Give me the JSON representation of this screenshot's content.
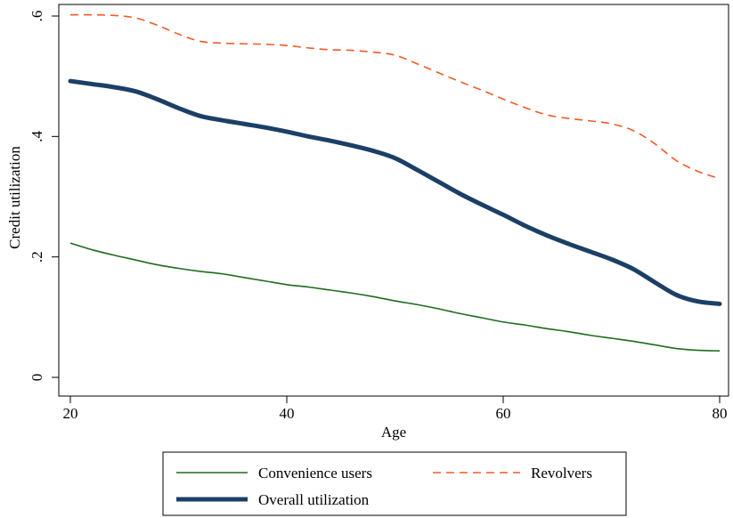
{
  "chart_data": {
    "type": "line",
    "xlabel": "Age",
    "ylabel": "Credit utilization",
    "xlim": [
      20,
      80
    ],
    "ylim": [
      0,
      0.6
    ],
    "x_ticks": [
      20,
      40,
      60,
      80
    ],
    "x_tick_labels": [
      "20",
      "40",
      "60",
      "80"
    ],
    "y_ticks": [
      0,
      0.2,
      0.4,
      0.6
    ],
    "y_tick_labels": [
      "0",
      ".2",
      ".4",
      ".6"
    ],
    "grid": false,
    "legend_position": "bottom",
    "series": [
      {
        "name": "Convenience users",
        "color": "#1f6b1f",
        "style": "solid-thin",
        "x": [
          20,
          22,
          24,
          26,
          28,
          30,
          32,
          34,
          36,
          38,
          40,
          42,
          44,
          46,
          48,
          50,
          52,
          54,
          56,
          58,
          60,
          62,
          64,
          66,
          68,
          70,
          72,
          74,
          76,
          78,
          80
        ],
        "y": [
          0.223,
          0.212,
          0.203,
          0.195,
          0.187,
          0.181,
          0.176,
          0.172,
          0.166,
          0.16,
          0.154,
          0.15,
          0.145,
          0.14,
          0.134,
          0.127,
          0.121,
          0.114,
          0.106,
          0.099,
          0.092,
          0.087,
          0.081,
          0.076,
          0.07,
          0.065,
          0.06,
          0.054,
          0.048,
          0.045,
          0.044
        ]
      },
      {
        "name": "Revolvers",
        "color": "#f05a28",
        "style": "dashed",
        "x": [
          20,
          22,
          24,
          26,
          28,
          30,
          32,
          34,
          36,
          38,
          40,
          42,
          44,
          46,
          48,
          50,
          52,
          54,
          56,
          58,
          60,
          62,
          64,
          66,
          68,
          70,
          72,
          74,
          76,
          78,
          80
        ],
        "y": [
          0.602,
          0.602,
          0.601,
          0.597,
          0.585,
          0.57,
          0.558,
          0.555,
          0.554,
          0.553,
          0.551,
          0.547,
          0.544,
          0.543,
          0.54,
          0.535,
          0.521,
          0.506,
          0.491,
          0.477,
          0.462,
          0.448,
          0.436,
          0.43,
          0.426,
          0.421,
          0.41,
          0.388,
          0.36,
          0.342,
          0.33
        ]
      },
      {
        "name": "Overall utilization",
        "color": "#1c3f66",
        "style": "solid-thick",
        "x": [
          20,
          22,
          24,
          26,
          28,
          30,
          32,
          34,
          36,
          38,
          40,
          42,
          44,
          46,
          48,
          50,
          52,
          54,
          56,
          58,
          60,
          62,
          64,
          66,
          68,
          70,
          72,
          74,
          76,
          78,
          80
        ],
        "y": [
          0.492,
          0.487,
          0.482,
          0.475,
          0.462,
          0.447,
          0.434,
          0.427,
          0.421,
          0.415,
          0.408,
          0.4,
          0.393,
          0.385,
          0.376,
          0.364,
          0.345,
          0.325,
          0.305,
          0.287,
          0.27,
          0.252,
          0.236,
          0.222,
          0.209,
          0.196,
          0.18,
          0.158,
          0.137,
          0.126,
          0.122
        ]
      }
    ]
  },
  "legend": {
    "items": [
      {
        "label": "Convenience users",
        "color": "#1f6b1f",
        "style": "solid-thin"
      },
      {
        "label": "Revolvers",
        "color": "#f05a28",
        "style": "dashed"
      },
      {
        "label": "Overall utilization",
        "color": "#1c3f66",
        "style": "solid-thick"
      }
    ]
  }
}
